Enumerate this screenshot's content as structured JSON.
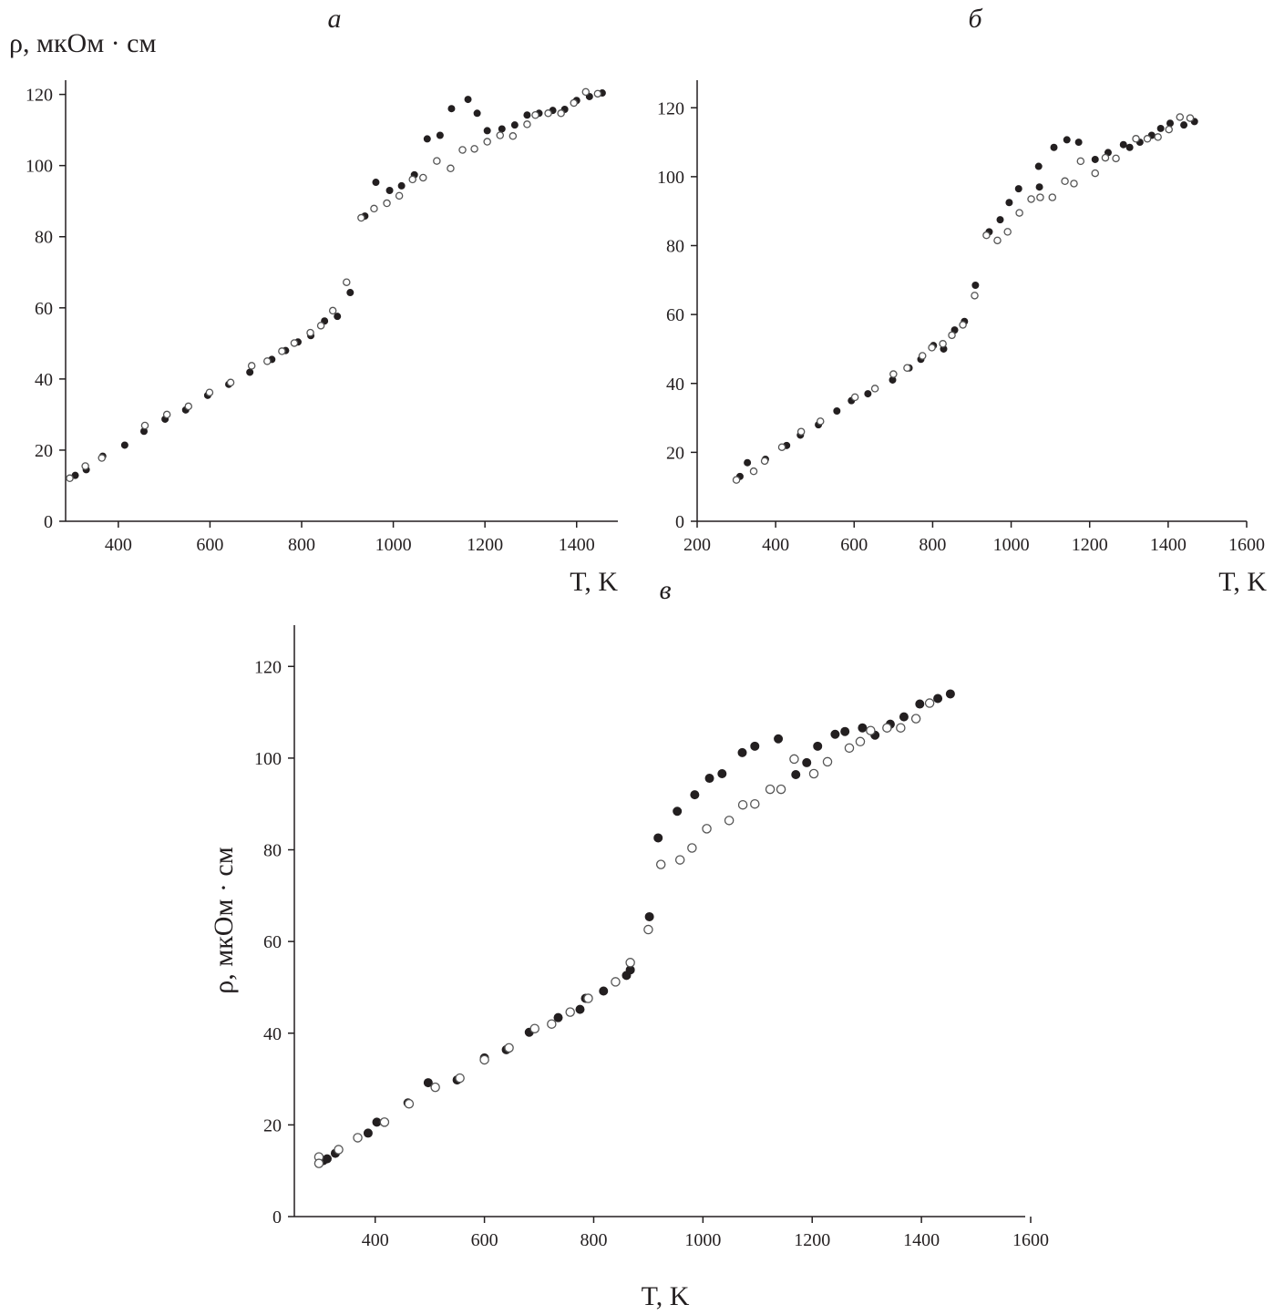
{
  "chart_data": [
    {
      "type": "scatter",
      "title": "а",
      "xlabel": "T, K",
      "ylabel": "ρ, мкОм · см",
      "xlim": [
        285,
        1490
      ],
      "ylim": [
        0,
        124
      ],
      "xticks": [
        400,
        600,
        800,
        1000,
        1200,
        1400
      ],
      "yticks": [
        0,
        20,
        40,
        60,
        80,
        100,
        120
      ],
      "grid": false,
      "series": [
        {
          "name": "filled",
          "marker": "filled-circle",
          "x": [
            306,
            330,
            366,
            414,
            456,
            502,
            547,
            595,
            641,
            687,
            735,
            765,
            792,
            820,
            850,
            878,
            906,
            938,
            962,
            992,
            1018,
            1046,
            1074,
            1102,
            1127,
            1163,
            1183,
            1205,
            1237,
            1265,
            1292,
            1318,
            1348,
            1374,
            1400,
            1428,
            1456
          ],
          "y": [
            12.9,
            14.5,
            18.3,
            21.4,
            25.3,
            28.7,
            31.3,
            35.4,
            38.5,
            41.9,
            45.5,
            48,
            50.4,
            52.2,
            56.3,
            57.6,
            64.3,
            85.8,
            95.3,
            93,
            94.3,
            97.4,
            107.5,
            108.5,
            116,
            118.6,
            114.7,
            109.8,
            110.3,
            111.4,
            114.2,
            114.7,
            115.5,
            115.8,
            118.3,
            119.4,
            120.4
          ]
        },
        {
          "name": "open",
          "marker": "open-circle",
          "x": [
            294,
            328,
            364,
            458,
            506,
            553,
            599,
            645,
            691,
            725,
            757,
            784,
            819,
            842,
            868,
            898,
            930,
            958,
            986,
            1013,
            1042,
            1065,
            1095,
            1125,
            1151,
            1177,
            1205,
            1233,
            1261,
            1292,
            1310,
            1338,
            1366,
            1394,
            1420,
            1446
          ],
          "y": [
            12.1,
            15.5,
            17.8,
            26.9,
            30,
            32.3,
            36.2,
            39,
            43.7,
            45,
            47.8,
            50.1,
            53,
            55,
            59.2,
            67.2,
            85.3,
            87.9,
            89.4,
            91.5,
            96.1,
            96.6,
            101.3,
            99.2,
            104.4,
            104.7,
            106.7,
            108.5,
            108.3,
            111.6,
            114.2,
            114.7,
            114.7,
            117.6,
            120.7,
            120.2
          ]
        }
      ]
    },
    {
      "type": "scatter",
      "title": "б",
      "xlabel": "T, K",
      "ylabel": "",
      "xlim": [
        200,
        1600
      ],
      "ylim": [
        0,
        128
      ],
      "xticks": [
        200,
        400,
        600,
        800,
        1000,
        1200,
        1400,
        1600
      ],
      "yticks": [
        0,
        20,
        40,
        60,
        80,
        100,
        120
      ],
      "grid": false,
      "series": [
        {
          "name": "filled",
          "marker": "filled-circle",
          "x": [
            309,
            328,
            374,
            428,
            463,
            509,
            556,
            593,
            635,
            698,
            740,
            770,
            802,
            828,
            856,
            881,
            909,
            944,
            972,
            995,
            1019,
            1072,
            1070,
            1109,
            1142,
            1172,
            1214,
            1247,
            1286,
            1302,
            1328,
            1358,
            1381,
            1405,
            1440,
            1467
          ],
          "y": [
            13,
            17,
            18,
            22,
            25,
            28,
            32,
            35,
            37,
            41,
            44.5,
            47,
            51,
            50,
            55.5,
            58,
            68.5,
            84,
            87.5,
            92.5,
            96.5,
            97,
            103,
            108.5,
            110.7,
            110,
            105,
            107,
            109.3,
            108.5,
            110,
            112,
            114,
            115.5,
            115,
            116
          ]
        },
        {
          "name": "open",
          "marker": "open-circle",
          "x": [
            300,
            344,
            372,
            416,
            465,
            514,
            602,
            653,
            700,
            735,
            774,
            798,
            826,
            849,
            877,
            907,
            937,
            965,
            991,
            1021,
            1051,
            1074,
            1105,
            1137,
            1160,
            1177,
            1214,
            1240,
            1267,
            1318,
            1347,
            1374,
            1402,
            1430,
            1456
          ],
          "y": [
            12,
            14.5,
            17.5,
            21.5,
            26,
            29,
            36,
            38.5,
            42.7,
            44.5,
            48,
            50.4,
            51.5,
            54,
            57,
            65.5,
            83,
            81.5,
            84,
            89.5,
            93.5,
            94,
            94,
            98.7,
            98,
            104.5,
            101,
            105.5,
            105.3,
            111,
            111,
            111.5,
            113.7,
            117.3,
            117
          ]
        }
      ]
    },
    {
      "type": "scatter",
      "title": "в",
      "xlabel": "T, K",
      "ylabel": "ρ, мкОм · см",
      "xlim": [
        252,
        1590
      ],
      "ylim": [
        0,
        129
      ],
      "xticks": [
        400,
        600,
        800,
        1000,
        1200,
        1400,
        1600
      ],
      "yticks": [
        0,
        20,
        40,
        60,
        80,
        100,
        120
      ],
      "grid": false,
      "series": [
        {
          "name": "filled",
          "marker": "filled-circle",
          "x": [
            305,
            312,
            327,
            387,
            403,
            460,
            497,
            550,
            600,
            640,
            682,
            735,
            775,
            785,
            818,
            860,
            867,
            902,
            918,
            953,
            985,
            1012,
            1035,
            1072,
            1095,
            1138,
            1170,
            1190,
            1210,
            1242,
            1260,
            1292,
            1315,
            1343,
            1368,
            1397,
            1430,
            1453
          ],
          "y": [
            12.2,
            12.6,
            13.8,
            18.2,
            20.6,
            24.8,
            29.2,
            29.8,
            34.6,
            36.4,
            40.2,
            43.4,
            45.2,
            47.6,
            49.2,
            52.6,
            53.8,
            65.4,
            82.6,
            88.4,
            92,
            95.6,
            96.6,
            101.2,
            102.6,
            104.2,
            96.4,
            99,
            102.6,
            105.2,
            105.8,
            106.6,
            105,
            107.4,
            109,
            111.8,
            113,
            114
          ]
        },
        {
          "name": "open",
          "marker": "open-circle",
          "x": [
            297,
            297,
            333,
            368,
            417,
            462,
            510,
            555,
            600,
            645,
            692,
            723,
            757,
            790,
            840,
            867,
            900,
            923,
            958,
            980,
            1007,
            1048,
            1073,
            1095,
            1123,
            1143,
            1167,
            1203,
            1228,
            1268,
            1288,
            1307,
            1337,
            1362,
            1390,
            1415
          ],
          "y": [
            13,
            11.6,
            14.6,
            17.2,
            20.6,
            24.6,
            28.2,
            30.2,
            34.2,
            36.8,
            41,
            42,
            44.6,
            47.6,
            51.2,
            55.4,
            62.6,
            76.8,
            77.8,
            80.4,
            84.6,
            86.4,
            89.8,
            90,
            93.2,
            93.2,
            99.8,
            96.6,
            99.2,
            102.2,
            103.6,
            106,
            106.6,
            106.6,
            108.6,
            112
          ]
        }
      ]
    }
  ]
}
